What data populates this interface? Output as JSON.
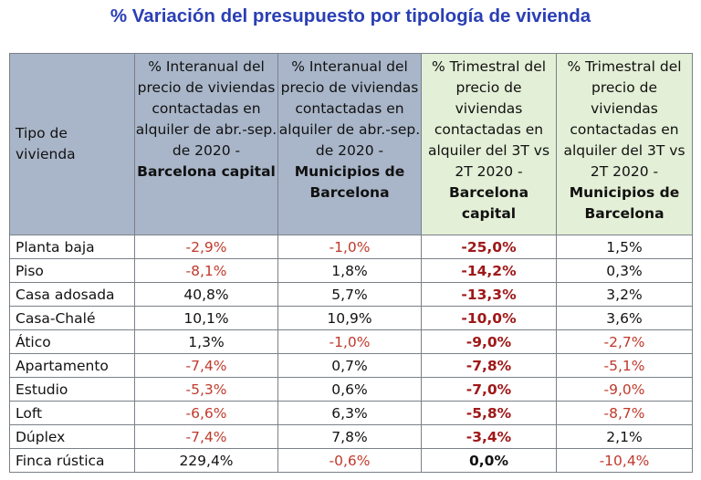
{
  "title": "% Variación del presupuesto por tipología de vivienda",
  "headers": {
    "tipo": "Tipo de vivienda",
    "col1_text": "% Interanual del precio de viviendas contactadas en alquiler de abr.-sep. de 2020 -",
    "col1_bold": "Barcelona capital",
    "col2_text": "% Interanual del precio de viviendas contactadas en alquiler de abr.-sep. de 2020 -",
    "col2_bold": "Municipios de Barcelona",
    "col3_text": "% Trimestral del precio de viviendas contactadas en alquiler del 3T vs 2T 2020 -",
    "col3_bold": "Barcelona capital",
    "col4_text": "% Trimestral del precio de viviendas contactadas en alquiler del 3T vs 2T 2020 -",
    "col4_bold": "Municipios de Barcelona"
  },
  "rows": [
    {
      "label": "Planta baja",
      "c1": "-2,9%",
      "c2": "-1,0%",
      "c3": "-25,0%",
      "c4": "1,5%"
    },
    {
      "label": "Piso",
      "c1": "-8,1%",
      "c2": "1,8%",
      "c3": "-14,2%",
      "c4": "0,3%"
    },
    {
      "label": "Casa adosada",
      "c1": "40,8%",
      "c2": "5,7%",
      "c3": "-13,3%",
      "c4": "3,2%"
    },
    {
      "label": "Casa-Chalé",
      "c1": "10,1%",
      "c2": "10,9%",
      "c3": "-10,0%",
      "c4": "3,6%"
    },
    {
      "label": "Ático",
      "c1": "1,3%",
      "c2": "-1,0%",
      "c3": "-9,0%",
      "c4": "-2,7%"
    },
    {
      "label": "Apartamento",
      "c1": "-7,4%",
      "c2": "0,7%",
      "c3": "-7,8%",
      "c4": "-5,1%"
    },
    {
      "label": "Estudio",
      "c1": "-5,3%",
      "c2": "0,6%",
      "c3": "-7,0%",
      "c4": "-9,0%"
    },
    {
      "label": "Loft",
      "c1": "-6,6%",
      "c2": "6,3%",
      "c3": "-5,8%",
      "c4": "-8,7%"
    },
    {
      "label": "Dúplex",
      "c1": "-7,4%",
      "c2": "7,8%",
      "c3": "-3,4%",
      "c4": "2,1%"
    },
    {
      "label": "Finca rústica",
      "c1": "229,4%",
      "c2": "-0,6%",
      "c3": "0,0%",
      "c4": "-10,4%"
    }
  ],
  "colors": {
    "title": "#2a3fb5",
    "header_blue": "#a9b6c9",
    "header_green": "#e3efd6",
    "negative": "#c0392b",
    "negative_strong": "#a01818"
  }
}
